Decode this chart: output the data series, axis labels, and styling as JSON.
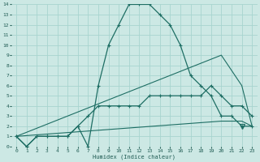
{
  "xlabel": "Humidex (Indice chaleur)",
  "xlim": [
    -0.5,
    23.5
  ],
  "ylim": [
    0,
    14
  ],
  "xticks": [
    0,
    1,
    2,
    3,
    4,
    5,
    6,
    7,
    8,
    9,
    10,
    11,
    12,
    13,
    14,
    15,
    16,
    17,
    18,
    19,
    20,
    21,
    22,
    23
  ],
  "yticks": [
    0,
    1,
    2,
    3,
    4,
    5,
    6,
    7,
    8,
    9,
    10,
    11,
    12,
    13,
    14
  ],
  "bg_color": "#cce8e4",
  "grid_color": "#a8d4cf",
  "line_color": "#1e6e64",
  "line1_x": [
    0,
    1,
    2,
    3,
    4,
    5,
    6,
    7,
    8,
    9,
    10,
    11,
    12,
    13,
    14,
    15,
    16,
    17,
    18,
    19,
    20,
    21,
    22,
    23
  ],
  "line1_y": [
    1,
    0,
    1,
    1,
    1,
    1,
    2,
    0,
    6,
    10,
    12,
    14,
    14,
    14,
    13,
    12,
    10,
    7,
    6,
    5,
    3,
    3,
    2,
    2
  ],
  "line2_x": [
    0,
    1,
    2,
    3,
    4,
    5,
    6,
    7,
    8,
    9,
    10,
    11,
    12,
    13,
    14,
    15,
    16,
    17,
    18,
    19,
    20,
    21,
    22,
    23
  ],
  "line2_y": [
    1,
    0,
    1,
    1,
    1,
    1,
    2,
    3,
    4,
    4,
    4,
    4,
    4,
    5,
    5,
    5,
    5,
    5,
    5,
    6,
    5,
    4,
    4,
    3
  ],
  "line3_x": [
    0,
    20,
    22,
    23
  ],
  "line3_y": [
    1,
    9,
    6,
    2
  ],
  "line4_x": [
    0,
    20,
    22,
    23
  ],
  "line4_y": [
    1,
    2.5,
    2.5,
    2
  ],
  "triangle_x": 22,
  "triangle_y": 2
}
